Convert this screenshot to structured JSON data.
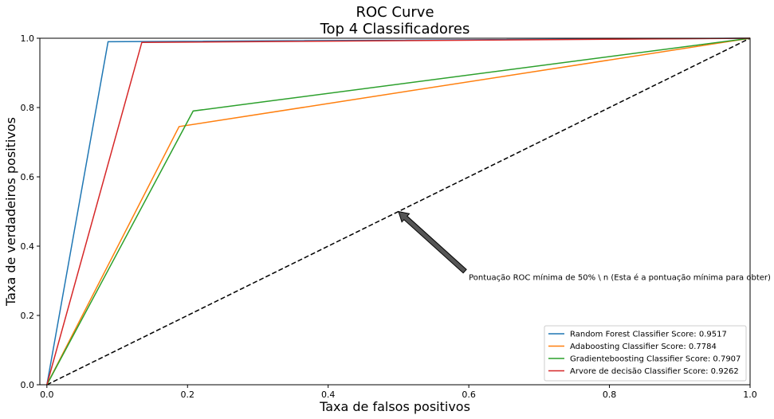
{
  "chart_data": {
    "type": "line",
    "title": "ROC Curve",
    "subtitle": "Top 4 Classificadores",
    "xlabel": "Taxa de falsos positivos",
    "ylabel": "Taxa de verdadeiros positivos",
    "xlim": [
      -0.01,
      1.0
    ],
    "ylim": [
      0.0,
      1.0
    ],
    "xticks": [
      0.0,
      0.2,
      0.4,
      0.6,
      0.8,
      1.0
    ],
    "xtick_labels": [
      "0.0",
      "0.2",
      "0.4",
      "0.6",
      "0.8",
      "1.0"
    ],
    "yticks": [
      0.0,
      0.2,
      0.4,
      0.6,
      0.8,
      1.0
    ],
    "ytick_labels": [
      "0.0",
      "0.2",
      "0.4",
      "0.6",
      "0.8",
      "1.0"
    ],
    "grid": false,
    "legend_position": "lower-right",
    "series": [
      {
        "name": "Random Forest Classifier Score: 0.9517",
        "color": "#1f77b4",
        "x": [
          0.0,
          0.087,
          1.0
        ],
        "y": [
          0.0,
          0.99,
          1.0
        ]
      },
      {
        "name": "Adaboosting Classifier Score: 0.7784",
        "color": "#ff7f0e",
        "x": [
          0.0,
          0.188,
          1.0
        ],
        "y": [
          0.0,
          0.745,
          1.0
        ]
      },
      {
        "name": "Gradienteboosting Classifier Score: 0.7907",
        "color": "#2ca02c",
        "x": [
          0.0,
          0.208,
          1.0
        ],
        "y": [
          0.0,
          0.79,
          1.0
        ]
      },
      {
        "name": "Arvore de decisão Classifier Score: 0.9262",
        "color": "#d62728",
        "x": [
          0.0,
          0.135,
          1.0
        ],
        "y": [
          0.0,
          0.988,
          1.0
        ]
      }
    ],
    "reference_line": {
      "x": [
        0.0,
        1.0
      ],
      "y": [
        0.0,
        1.0
      ],
      "color": "#000000",
      "style": "dashed"
    },
    "annotation": {
      "text": "Pontuação ROC mínima de 50% \\ n (Esta é a pontuação mínima para obter)",
      "xy": [
        0.5,
        0.5
      ],
      "xytext": [
        0.6,
        0.3
      ],
      "arrow_color": "#555555"
    }
  }
}
